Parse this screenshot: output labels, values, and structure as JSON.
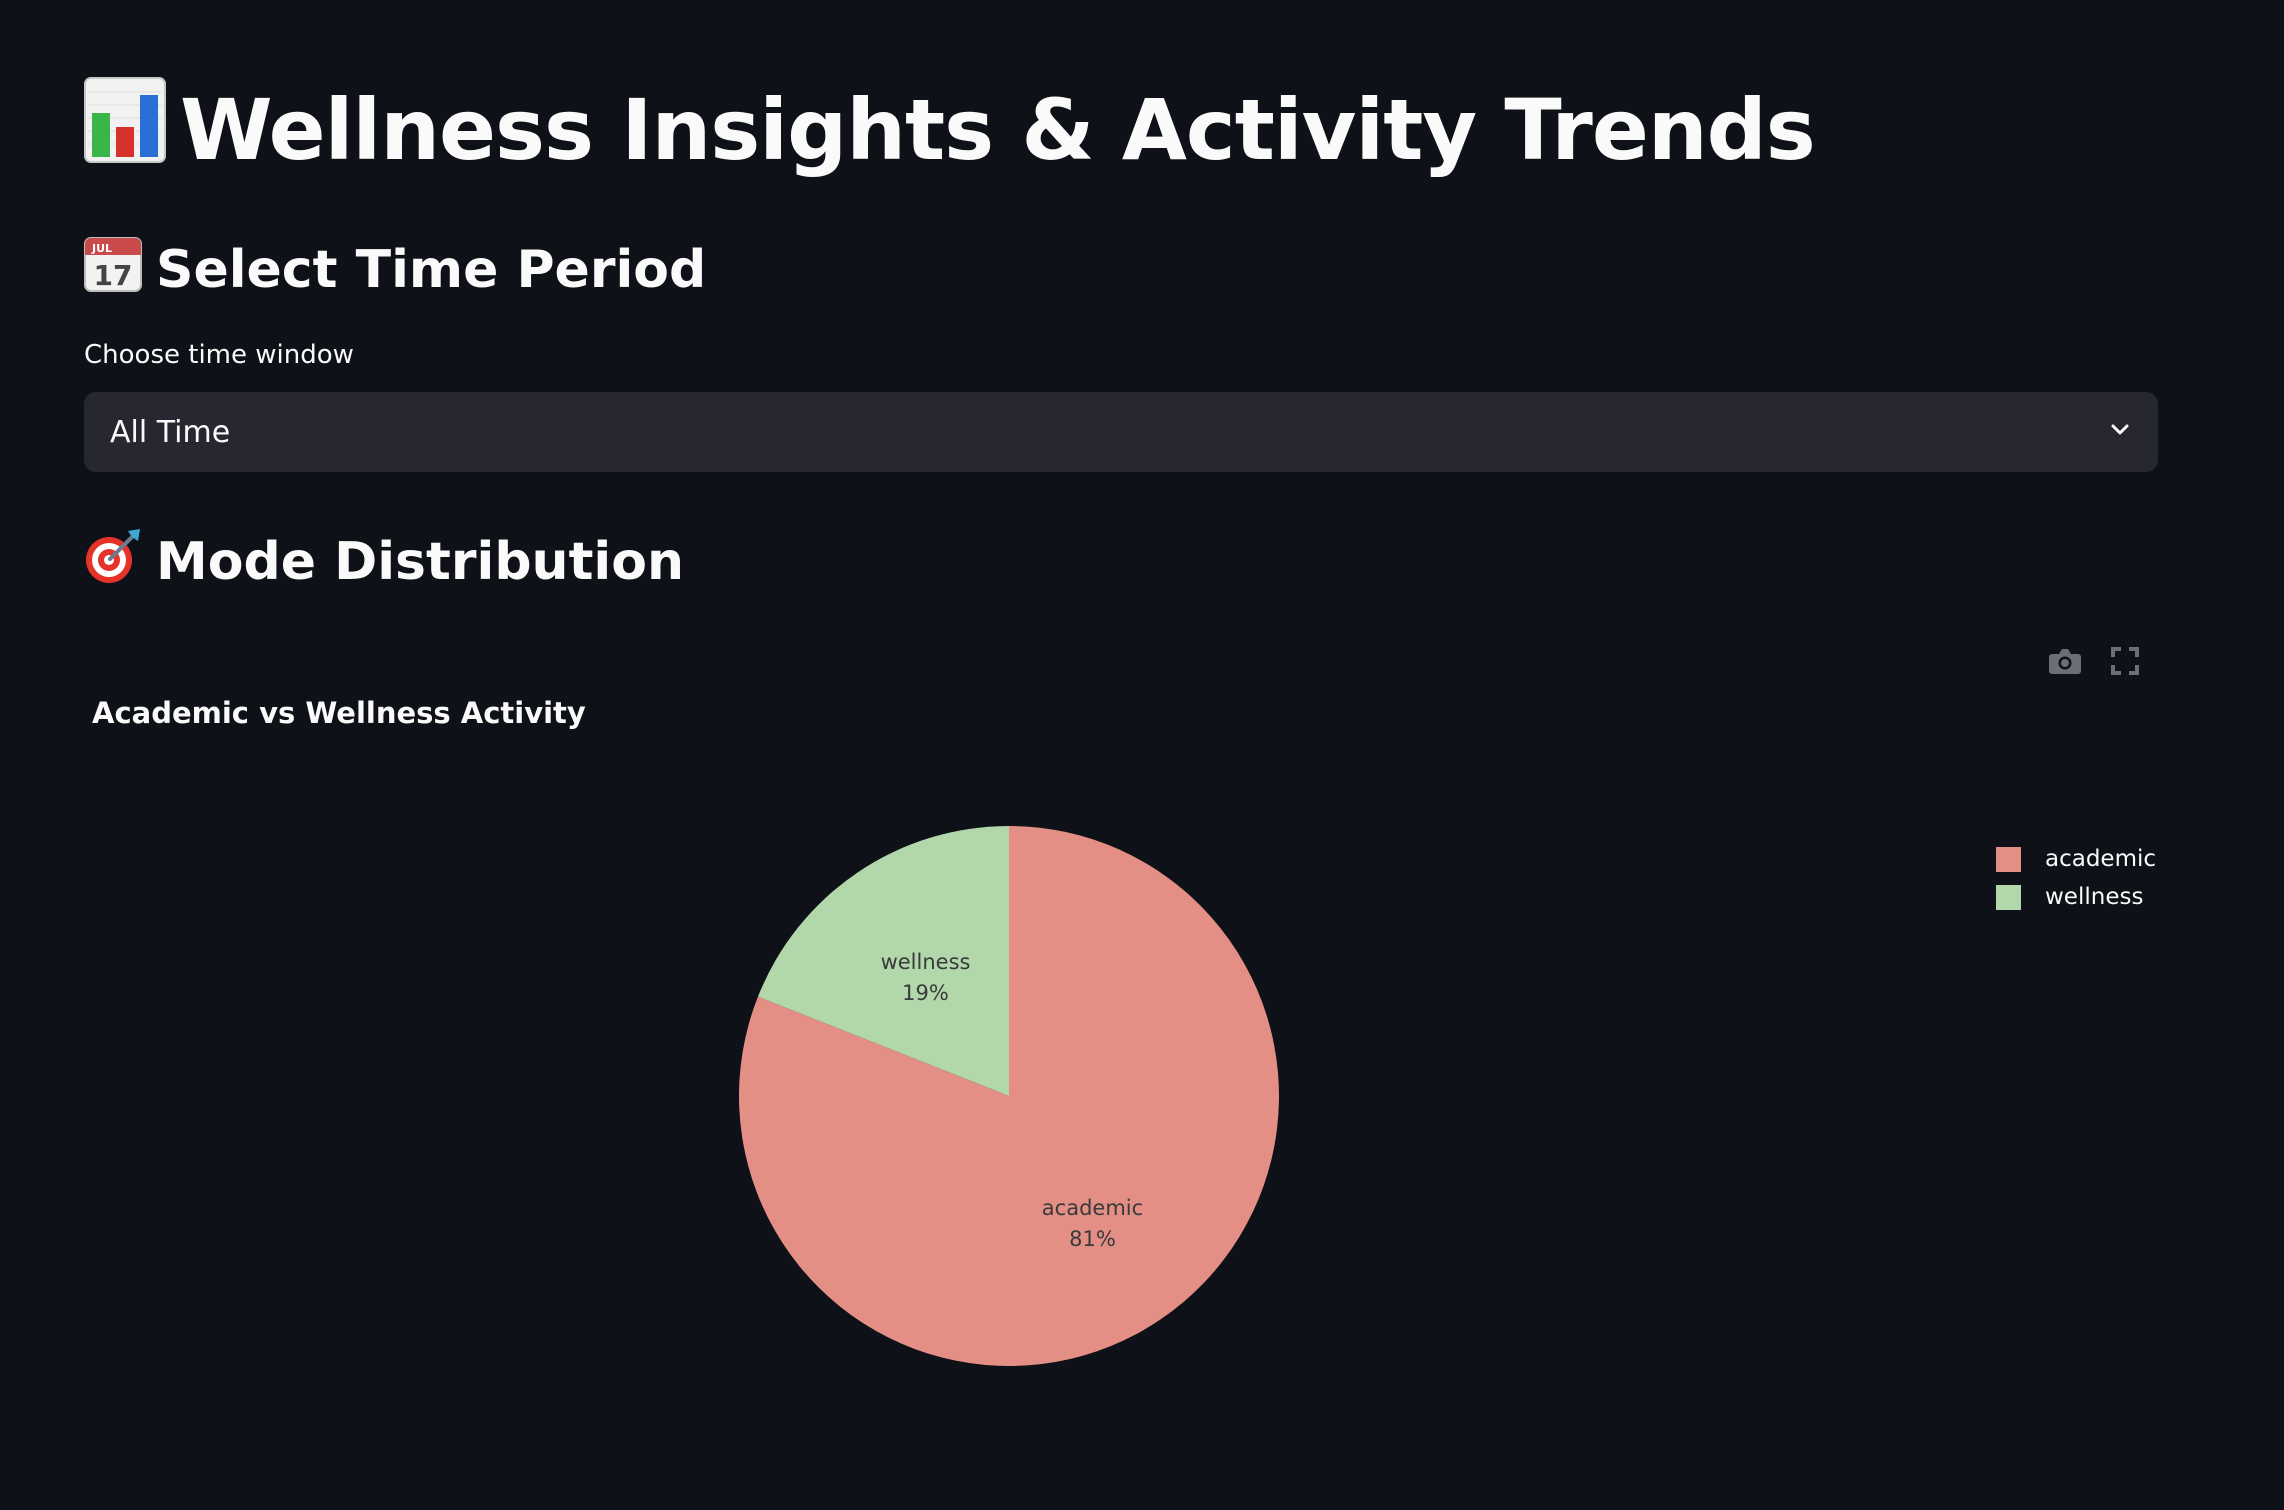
{
  "header": {
    "title": "Wellness Insights & Activity Trends",
    "title_icon": "bar-chart-icon"
  },
  "time_period": {
    "heading": "Select Time Period",
    "heading_icon": "calendar-icon",
    "select_label": "Choose time window",
    "selected_value": "All Time"
  },
  "mode_distribution": {
    "heading": "Mode Distribution",
    "heading_icon": "target-icon"
  },
  "chart_toolbar": {
    "icons": [
      "camera-icon",
      "fullscreen-icon"
    ]
  },
  "colors": {
    "background": "#0e1117",
    "select_bg": "#262730",
    "academic": "#e48f85",
    "wellness": "#b1d7aa"
  },
  "chart_data": {
    "type": "pie",
    "title": "Academic vs Wellness Activity",
    "slices": [
      {
        "label": "academic",
        "percent_label": "81%",
        "value": 81,
        "color": "#e48f85"
      },
      {
        "label": "wellness",
        "percent_label": "19%",
        "value": 19,
        "color": "#b1d7aa"
      }
    ],
    "legend": {
      "placement": "top-right",
      "entries": [
        "academic",
        "wellness"
      ]
    }
  }
}
